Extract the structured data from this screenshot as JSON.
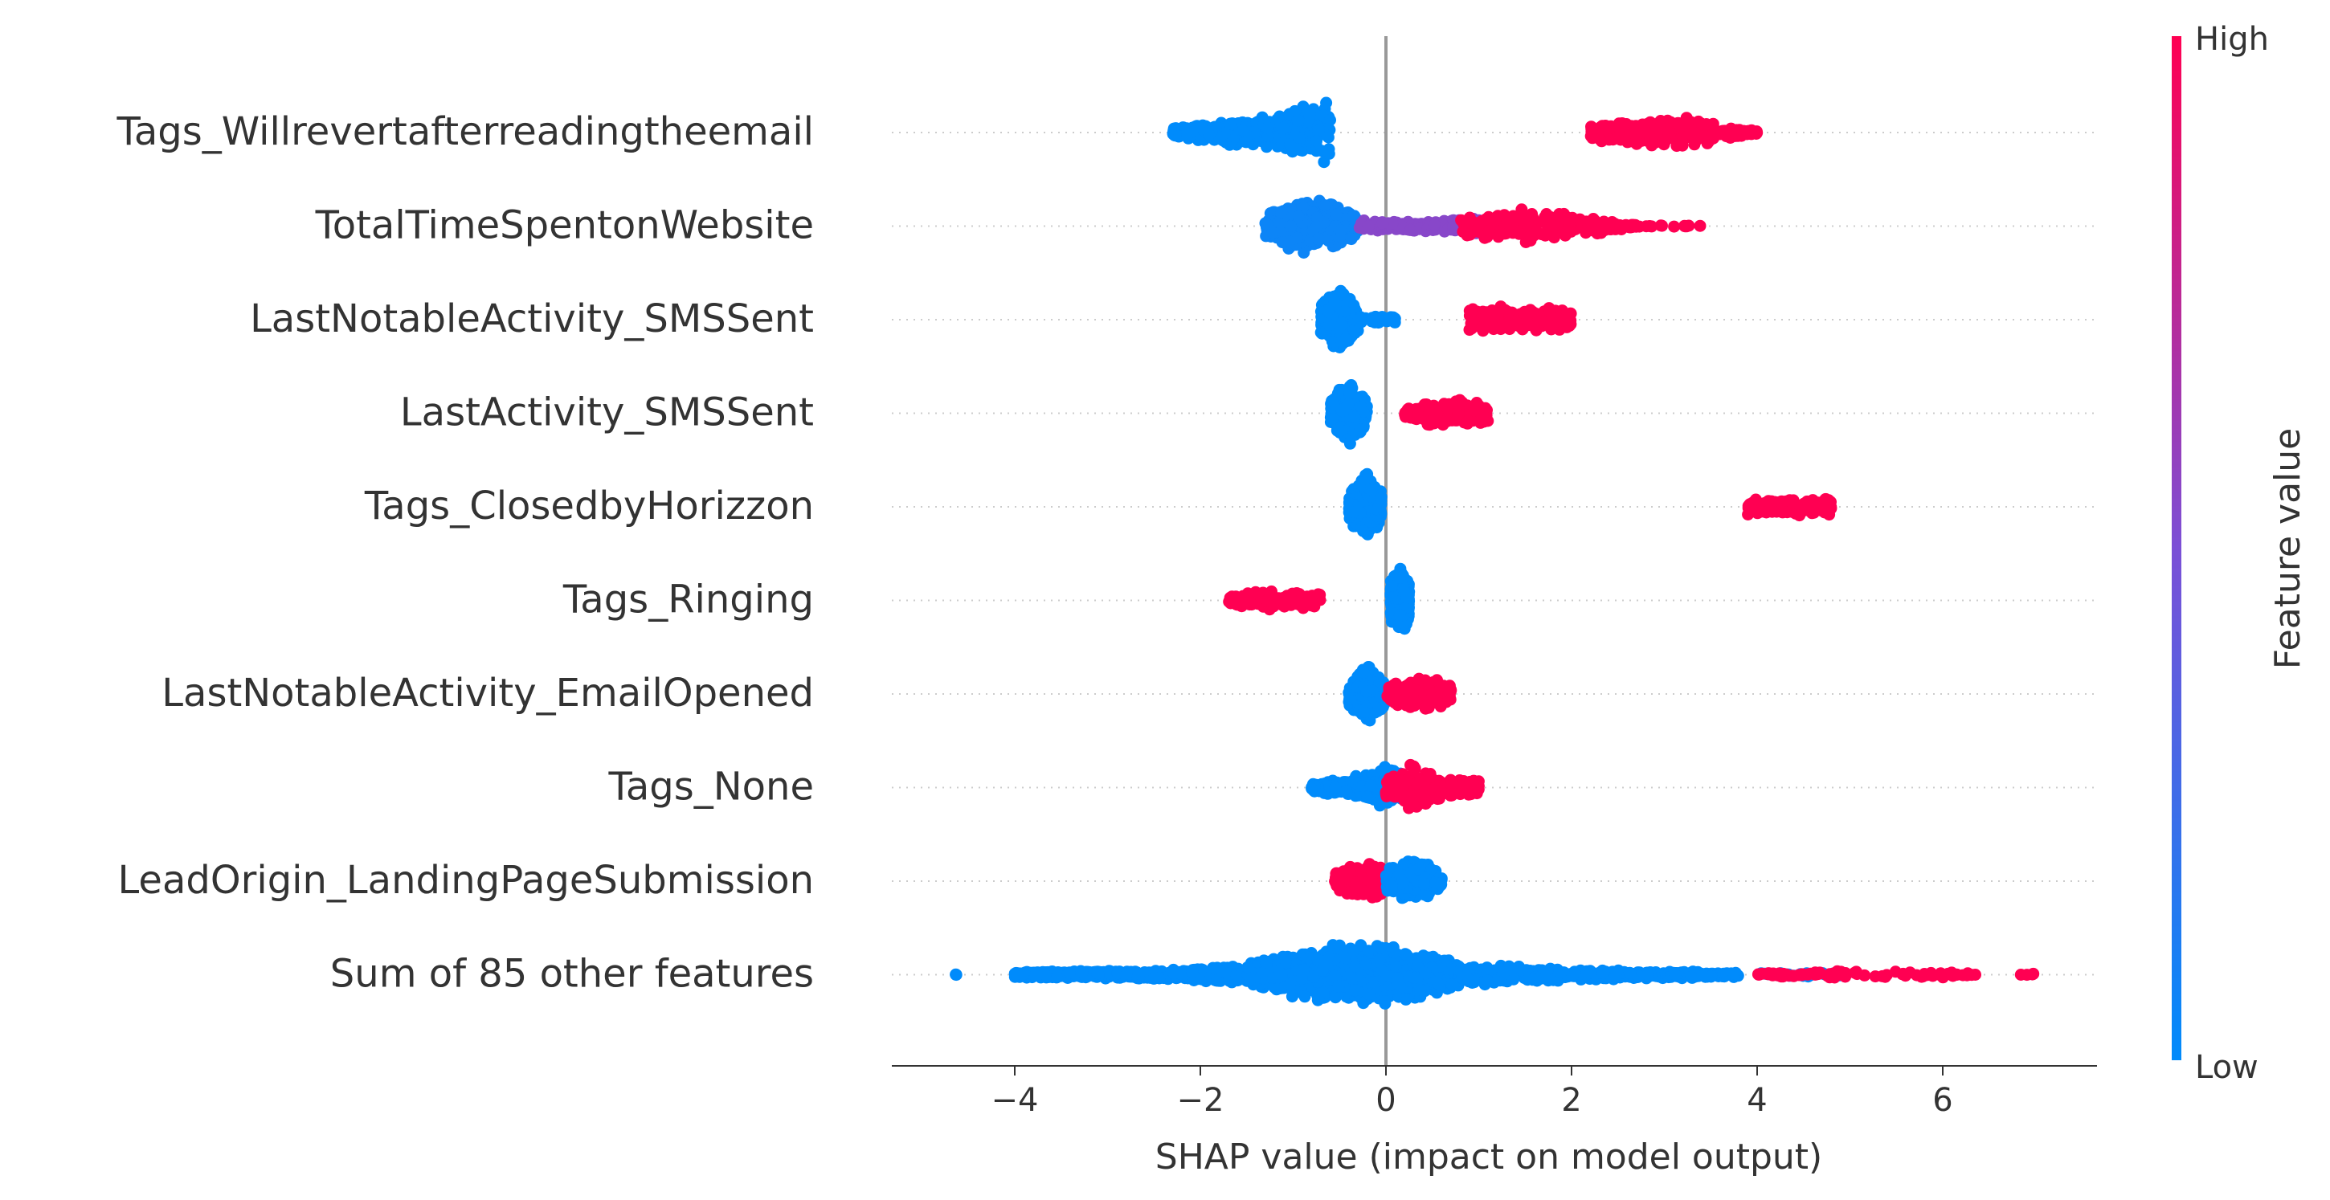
{
  "chart_data": {
    "type": "scatter",
    "subtype": "beeswarm",
    "xlabel": "SHAP value (impact on model output)",
    "xlim": [
      -5.3,
      7.8
    ],
    "xticks": [
      -4,
      -2,
      0,
      2,
      4,
      6
    ],
    "xtick_labels": [
      "−4",
      "−2",
      "0",
      "2",
      "4",
      "6"
    ],
    "zero_line": true,
    "grid": false,
    "colorbar": {
      "label": "Feature value",
      "high_label": "High",
      "low_label": "Low",
      "low_color": "#008bfb",
      "high_color": "#ff0052"
    },
    "features": [
      {
        "name": "Tags_Willrevertafterreadingtheemail",
        "clusters": [
          {
            "x": [
              -2.3,
              -0.6
            ],
            "value": 0.0,
            "density": [
              [
                -2.3,
                0.15
              ],
              [
                -1.8,
                0.3
              ],
              [
                -1.2,
                0.45
              ],
              [
                -0.85,
                0.8
              ],
              [
                -0.6,
                0.9
              ]
            ],
            "n": 420
          },
          {
            "x": [
              2.2,
              4.0
            ],
            "value": 1.0,
            "density": [
              [
                2.2,
                0.2
              ],
              [
                2.8,
                0.4
              ],
              [
                3.2,
                0.45
              ],
              [
                3.6,
                0.2
              ],
              [
                4.0,
                0.05
              ]
            ],
            "n": 320
          }
        ]
      },
      {
        "name": "TotalTimeSpentonWebsite",
        "clusters": [
          {
            "x": [
              -1.3,
              -0.3
            ],
            "value": 0.05,
            "density": [
              [
                -1.3,
                0.3
              ],
              [
                -0.9,
                0.8
              ],
              [
                -0.6,
                0.7
              ],
              [
                -0.3,
                0.3
              ]
            ],
            "n": 420
          },
          {
            "x": [
              -0.3,
              1.0
            ],
            "value": 0.55,
            "density": [
              [
                -0.3,
                0.15
              ],
              [
                0.5,
                0.15
              ],
              [
                1.0,
                0.25
              ]
            ],
            "n": 200
          },
          {
            "x": [
              0.8,
              2.7
            ],
            "value": 1.0,
            "density": [
              [
                0.8,
                0.3
              ],
              [
                1.5,
                0.55
              ],
              [
                2.0,
                0.3
              ],
              [
                2.7,
                0.05
              ]
            ],
            "n": 240
          },
          {
            "x": [
              2.7,
              3.4
            ],
            "value": 1.0,
            "density": [
              [
                2.7,
                0.03
              ],
              [
                3.4,
                0.02
              ]
            ],
            "n": 12
          }
        ]
      },
      {
        "name": "LastNotableActivity_SMSSent",
        "clusters": [
          {
            "x": [
              -0.7,
              -0.3
            ],
            "value": 0.0,
            "density": [
              [
                -0.7,
                0.4
              ],
              [
                -0.5,
                0.9
              ],
              [
                -0.3,
                0.4
              ]
            ],
            "n": 260
          },
          {
            "x": [
              -0.3,
              0.1
            ],
            "value": 0.0,
            "density": [
              [
                -0.3,
                0.1
              ],
              [
                0.1,
                0.1
              ]
            ],
            "n": 30
          },
          {
            "x": [
              0.9,
              2.0
            ],
            "value": 1.0,
            "density": [
              [
                0.9,
                0.3
              ],
              [
                1.4,
                0.4
              ],
              [
                2.0,
                0.3
              ]
            ],
            "n": 200
          }
        ]
      },
      {
        "name": "LastActivity_SMSSent",
        "clusters": [
          {
            "x": [
              -0.6,
              -0.2
            ],
            "value": 0.0,
            "density": [
              [
                -0.6,
                0.4
              ],
              [
                -0.4,
                0.9
              ],
              [
                -0.2,
                0.4
              ]
            ],
            "n": 260
          },
          {
            "x": [
              0.2,
              1.1
            ],
            "value": 1.0,
            "density": [
              [
                0.2,
                0.15
              ],
              [
                0.6,
                0.4
              ],
              [
                1.1,
                0.3
              ]
            ],
            "n": 170
          }
        ]
      },
      {
        "name": "Tags_ClosedbyHorizzon",
        "clusters": [
          {
            "x": [
              -0.4,
              -0.05
            ],
            "value": 0.0,
            "density": [
              [
                -0.4,
                0.4
              ],
              [
                -0.2,
                0.9
              ],
              [
                -0.05,
                0.4
              ]
            ],
            "n": 380
          },
          {
            "x": [
              3.9,
              4.8
            ],
            "value": 1.0,
            "density": [
              [
                3.9,
                0.25
              ],
              [
                4.3,
                0.25
              ],
              [
                4.8,
                0.2
              ]
            ],
            "n": 150
          }
        ]
      },
      {
        "name": "Tags_Ringing",
        "clusters": [
          {
            "x": [
              -1.7,
              -0.7
            ],
            "value": 1.0,
            "density": [
              [
                -1.7,
                0.1
              ],
              [
                -1.3,
                0.3
              ],
              [
                -0.7,
                0.2
              ]
            ],
            "n": 150
          },
          {
            "x": [
              0.05,
              0.25
            ],
            "value": 0.0,
            "density": [
              [
                0.05,
                0.6
              ],
              [
                0.15,
                0.9
              ],
              [
                0.25,
                0.6
              ]
            ],
            "n": 380
          }
        ]
      },
      {
        "name": "LastNotableActivity_EmailOpened",
        "clusters": [
          {
            "x": [
              -0.4,
              0.0
            ],
            "value": 0.0,
            "density": [
              [
                -0.4,
                0.3
              ],
              [
                -0.2,
                0.9
              ],
              [
                0.0,
                0.3
              ]
            ],
            "n": 320
          },
          {
            "x": [
              0.0,
              0.7
            ],
            "value": 1.0,
            "density": [
              [
                0.0,
                0.3
              ],
              [
                0.4,
                0.45
              ],
              [
                0.7,
                0.3
              ]
            ],
            "n": 220
          }
        ]
      },
      {
        "name": "Tags_None",
        "clusters": [
          {
            "x": [
              -0.8,
              0.3
            ],
            "value": 0.0,
            "density": [
              [
                -0.8,
                0.1
              ],
              [
                -0.3,
                0.35
              ],
              [
                0.0,
                0.6
              ],
              [
                0.3,
                0.3
              ]
            ],
            "n": 320
          },
          {
            "x": [
              0.0,
              1.0
            ],
            "value": 1.0,
            "density": [
              [
                0.0,
                0.3
              ],
              [
                0.3,
                0.7
              ],
              [
                0.6,
                0.3
              ],
              [
                1.0,
                0.2
              ]
            ],
            "n": 260
          }
        ]
      },
      {
        "name": "LeadOrigin_LandingPageSubmission",
        "clusters": [
          {
            "x": [
              -0.55,
              0.0
            ],
            "value": 1.0,
            "density": [
              [
                -0.55,
                0.25
              ],
              [
                -0.2,
                0.55
              ],
              [
                0.0,
                0.3
              ]
            ],
            "n": 280
          },
          {
            "x": [
              0.0,
              0.6
            ],
            "value": 0.0,
            "density": [
              [
                0.0,
                0.3
              ],
              [
                0.3,
                0.75
              ],
              [
                0.6,
                0.2
              ]
            ],
            "n": 240
          }
        ]
      },
      {
        "name": "Sum of 85 other features",
        "clusters": [
          {
            "x": [
              -4.7,
              -4.6
            ],
            "value": 0.0,
            "density": [
              [
                -4.7,
                0.02
              ],
              [
                -4.6,
                0.02
              ]
            ],
            "n": 2
          },
          {
            "x": [
              -4.0,
              -1.5
            ],
            "value": 0.0,
            "density": [
              [
                -4.0,
                0.08
              ],
              [
                -2.5,
                0.12
              ],
              [
                -1.5,
                0.25
              ]
            ],
            "n": 520
          },
          {
            "x": [
              -1.5,
              0.8
            ],
            "value": 0.0,
            "density": [
              [
                -1.5,
                0.3
              ],
              [
                -0.8,
                0.75
              ],
              [
                -0.3,
                0.9
              ],
              [
                0.2,
                0.75
              ],
              [
                0.8,
                0.4
              ]
            ],
            "n": 1000
          },
          {
            "x": [
              0.8,
              3.8
            ],
            "value": 0.0,
            "density": [
              [
                0.8,
                0.3
              ],
              [
                2.0,
                0.15
              ],
              [
                3.0,
                0.1
              ],
              [
                3.8,
                0.06
              ]
            ],
            "n": 400
          },
          {
            "x": [
              4.0,
              4.9
            ],
            "value": 0.0,
            "density": [
              [
                4.0,
                0.06
              ],
              [
                4.9,
                0.05
              ]
            ],
            "n": 25
          },
          {
            "x": [
              4.0,
              6.4
            ],
            "value": 1.0,
            "density": [
              [
                4.0,
                0.04
              ],
              [
                5.0,
                0.12
              ],
              [
                6.0,
                0.08
              ],
              [
                6.4,
                0.03
              ]
            ],
            "n": 90
          },
          {
            "x": [
              6.8,
              7.0
            ],
            "value": 1.0,
            "density": [
              [
                6.8,
                0.03
              ],
              [
                7.0,
                0.03
              ]
            ],
            "n": 4
          }
        ]
      }
    ]
  }
}
